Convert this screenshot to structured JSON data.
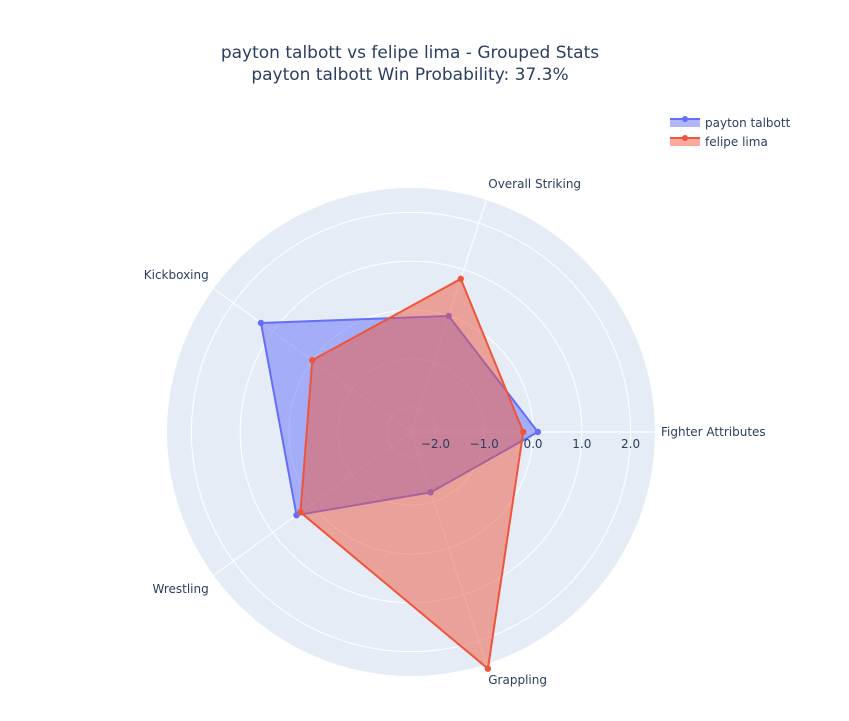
{
  "chart_data": {
    "type": "radar",
    "title": "payton talbott vs felipe lima - Grouped Stats",
    "subtitle": "payton talbott Win Probability: 37.3%",
    "categories": [
      "Fighter Attributes",
      "Overall Striking",
      "Kickboxing",
      "Wrestling",
      "Grappling"
    ],
    "radial_ticks": [
      "−2.0",
      "−1.0",
      "0.0",
      "1.0",
      "2.0"
    ],
    "radial_tick_values": [
      -2,
      -1,
      0,
      1,
      2
    ],
    "rlim": [
      -2.5,
      2.5
    ],
    "series": [
      {
        "name": "payton talbott",
        "values": [
          0.1,
          0.0,
          1.3,
          0.4,
          -1.2
        ],
        "color": "#636efa"
      },
      {
        "name": "felipe lima",
        "values": [
          -0.2,
          0.8,
          0.0,
          0.3,
          2.6
        ],
        "color": "#ef553b"
      }
    ],
    "polar_bgcolor": "#e5ecf6",
    "grid": true,
    "legend_position": "top-right"
  }
}
